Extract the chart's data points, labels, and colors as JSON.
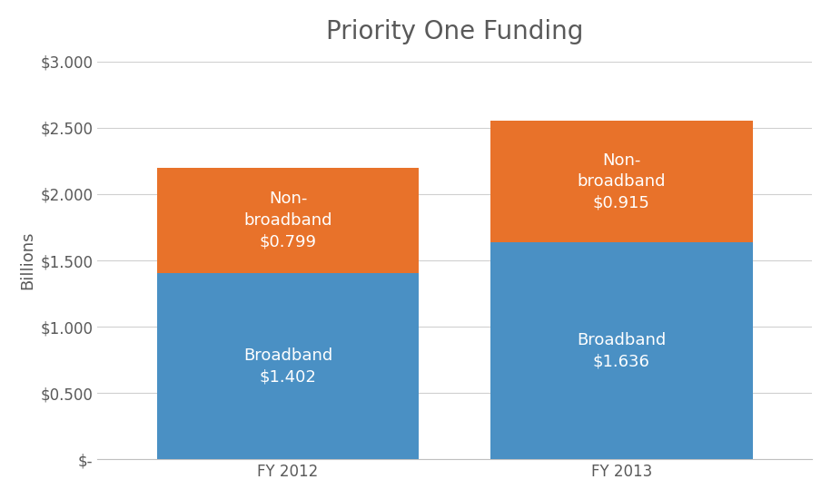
{
  "title": "Priority One Funding",
  "categories": [
    "FY 2012",
    "FY 2013"
  ],
  "broadband": [
    1.402,
    1.636
  ],
  "non_broadband": [
    0.799,
    0.915
  ],
  "broadband_color": "#4A90C4",
  "non_broadband_color": "#E8722A",
  "ylabel": "Billions",
  "ylim": [
    0,
    3.0
  ],
  "yticks": [
    0,
    0.5,
    1.0,
    1.5,
    2.0,
    2.5,
    3.0
  ],
  "ytick_labels": [
    "$-",
    "$0.500",
    "$1.000",
    "$1.500",
    "$2.000",
    "$2.500",
    "$3.000"
  ],
  "bar_width": 0.55,
  "x_positions": [
    0.3,
    1.0
  ],
  "xlim": [
    -0.1,
    1.4
  ],
  "background_color": "#ffffff",
  "title_fontsize": 20,
  "label_fontsize": 13,
  "tick_fontsize": 12,
  "ylabel_fontsize": 13,
  "text_color": "#ffffff",
  "broadband_labels": [
    "Broadband\n$1.402",
    "Broadband\n$1.636"
  ],
  "non_broadband_labels": [
    "Non-\nbroadband\n$0.799",
    "Non-\nbroadband\n$0.915"
  ],
  "grid_color": "#d0d0d0",
  "spine_color": "#c0c0c0",
  "axis_label_color": "#595959"
}
